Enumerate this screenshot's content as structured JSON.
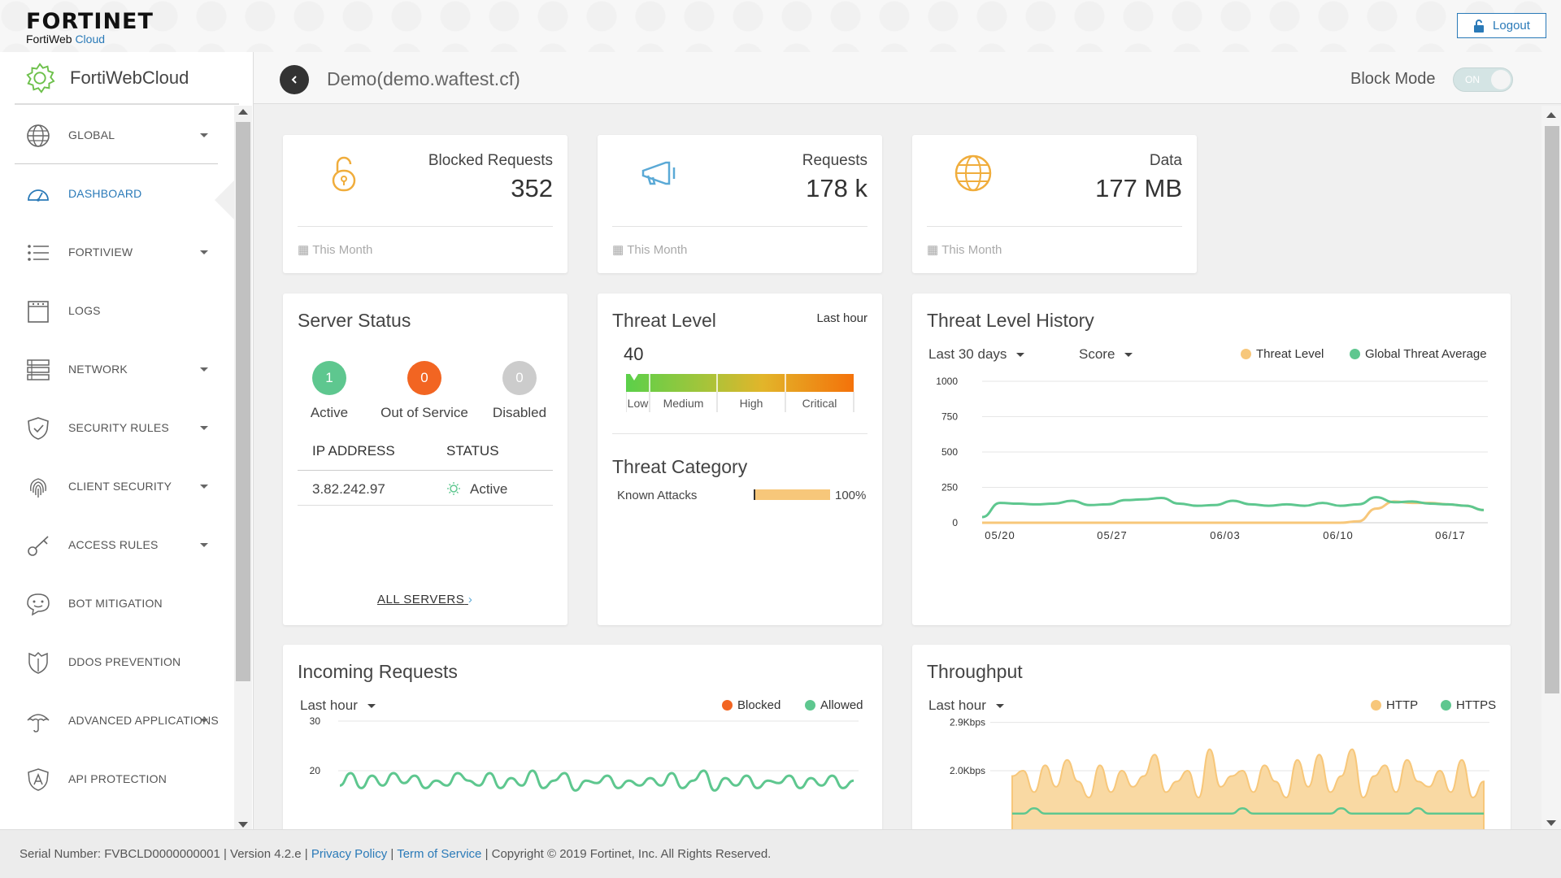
{
  "header": {
    "brand": "FORTINET",
    "product": "FortiWeb",
    "product_suffix": "Cloud",
    "logout_label": "Logout"
  },
  "sidebar": {
    "title": "FortiWebCloud",
    "items": [
      {
        "label": "GLOBAL",
        "icon": "globe-icon",
        "has_caret": true
      },
      {
        "label": "DASHBOARD",
        "icon": "dashboard-icon",
        "has_caret": false,
        "active": true
      },
      {
        "label": "FORTIVIEW",
        "icon": "list-icon",
        "has_caret": true
      },
      {
        "label": "LOGS",
        "icon": "logs-icon",
        "has_caret": false
      },
      {
        "label": "NETWORK",
        "icon": "network-icon",
        "has_caret": true
      },
      {
        "label": "SECURITY RULES",
        "icon": "shield-icon",
        "has_caret": true
      },
      {
        "label": "CLIENT SECURITY",
        "icon": "fingerprint-icon",
        "has_caret": true
      },
      {
        "label": "ACCESS RULES",
        "icon": "key-icon",
        "has_caret": true
      },
      {
        "label": "BOT MITIGATION",
        "icon": "bot-icon",
        "has_caret": false
      },
      {
        "label": "DDOS PREVENTION",
        "icon": "ddos-shield-icon",
        "has_caret": false
      },
      {
        "label": "ADVANCED APPLICATIONS",
        "icon": "umbrella-icon",
        "has_caret": true
      },
      {
        "label": "API PROTECTION",
        "icon": "api-icon",
        "has_caret": false
      }
    ]
  },
  "titlebar": {
    "site": "Demo(demo.waftest.cf)",
    "block_mode_label": "Block Mode",
    "toggle_label": "ON"
  },
  "stats": [
    {
      "label": "Blocked Requests",
      "value": "352",
      "period": "This Month",
      "icon": "unlock-icon",
      "color": "#f0ad3c"
    },
    {
      "label": "Requests",
      "value": "178 k",
      "period": "This Month",
      "icon": "megaphone-icon",
      "color": "#5aa9d6"
    },
    {
      "label": "Data",
      "value": "177 MB",
      "period": "This Month",
      "icon": "globe-icon",
      "color": "#f0ad3c"
    }
  ],
  "server_status": {
    "title": "Server Status",
    "counts": [
      {
        "value": "1",
        "label": "Active",
        "color": "#5ec78f"
      },
      {
        "value": "0",
        "label": "Out of Service",
        "color": "#f26522"
      },
      {
        "value": "0",
        "label": "Disabled",
        "color": "#cccccc"
      }
    ],
    "columns": [
      "IP ADDRESS",
      "STATUS"
    ],
    "rows": [
      {
        "ip": "3.82.242.97",
        "status": "Active"
      }
    ],
    "all_link": "ALL SERVERS"
  },
  "threat_level": {
    "title": "Threat Level",
    "period": "Last hour",
    "value": 40,
    "levels": [
      "Low",
      "Medium",
      "High",
      "Critical"
    ],
    "category_title": "Threat Category",
    "category": {
      "name": "Known Attacks",
      "percent": "100%",
      "fraction": 1.0
    }
  },
  "threat_history": {
    "title": "Threat Level History",
    "range": "Last 30 days",
    "metric": "Score",
    "legend": [
      {
        "name": "Threat Level",
        "color": "#f7c77a"
      },
      {
        "name": "Global Threat Average",
        "color": "#5ec78f"
      }
    ]
  },
  "incoming": {
    "title": "Incoming Requests",
    "range": "Last hour",
    "legend": [
      {
        "name": "Blocked",
        "color": "#f26522"
      },
      {
        "name": "Allowed",
        "color": "#5ec78f"
      }
    ]
  },
  "throughput": {
    "title": "Throughput",
    "range": "Last hour",
    "legend": [
      {
        "name": "HTTP",
        "color": "#f7c77a"
      },
      {
        "name": "HTTPS",
        "color": "#5ec78f"
      }
    ]
  },
  "chart_data": [
    {
      "type": "line",
      "title": "Threat Level History",
      "x_ticks": [
        "05/20",
        "05/27",
        "06/03",
        "06/10",
        "06/17"
      ],
      "y_ticks": [
        "0",
        "250",
        "500",
        "750",
        "1000"
      ],
      "ylim": [
        0,
        1000
      ],
      "series": [
        {
          "name": "Global Threat Average",
          "color": "#5ec78f",
          "values": [
            40,
            140,
            135,
            130,
            135,
            155,
            125,
            130,
            160,
            165,
            175,
            135,
            120,
            125,
            155,
            130,
            120,
            130,
            120,
            140,
            120,
            130,
            180,
            145,
            150,
            135,
            130,
            120,
            90
          ]
        },
        {
          "name": "Threat Level",
          "color": "#f7c77a",
          "values": [
            0,
            0,
            0,
            0,
            0,
            0,
            0,
            0,
            0,
            0,
            0,
            0,
            0,
            0,
            0,
            0,
            0,
            0,
            0,
            0,
            0,
            10,
            100,
            150,
            140,
            140,
            130,
            120,
            90
          ]
        }
      ]
    },
    {
      "type": "line",
      "title": "Incoming Requests",
      "y_ticks": [
        "20",
        "30"
      ],
      "series": [
        {
          "name": "Allowed",
          "color": "#5ec78f",
          "values": [
            17,
            19.5,
            16.5,
            19,
            17,
            19.5,
            17.5,
            19,
            16.5,
            18,
            17,
            19.5,
            18,
            17,
            19.5,
            16.5,
            18.5,
            17,
            20,
            16.5,
            18,
            19.5,
            16,
            18,
            17.5,
            19,
            16.5,
            18,
            17,
            18.5,
            17,
            19.5,
            16.5,
            18,
            20,
            16,
            18.5,
            17,
            19,
            16.5,
            18,
            17.5,
            19,
            16.5,
            18.5,
            17,
            19,
            16.5,
            18
          ]
        }
      ]
    },
    {
      "type": "area",
      "title": "Throughput",
      "y_ticks": [
        "2.0Kbps",
        "2.9Kbps"
      ],
      "series": [
        {
          "name": "HTTP",
          "color": "#f7c77a",
          "values": [
            1.9,
            2.0,
            1.6,
            2.1,
            1.7,
            2.2,
            1.8,
            1.5,
            2.1,
            1.6,
            2.0,
            1.7,
            1.9,
            2.3,
            1.6,
            1.8,
            2.0,
            1.5,
            2.4,
            1.7,
            1.9,
            2.0,
            1.6,
            2.1,
            1.8,
            1.5,
            2.2,
            1.7,
            2.3,
            1.6,
            1.9,
            2.4,
            1.5,
            1.9,
            2.1,
            1.6,
            2.2,
            1.8,
            1.7,
            2.0,
            1.6,
            2.2,
            1.5,
            1.8
          ]
        },
        {
          "name": "HTTPS",
          "color": "#5ec78f",
          "values": [
            1.2,
            1.2,
            1.3,
            1.2,
            1.2,
            1.2,
            1.2,
            1.2,
            1.2,
            1.2,
            1.2,
            1.2,
            1.2,
            1.2,
            1.2,
            1.2,
            1.2,
            1.2,
            1.2,
            1.2,
            1.2,
            1.3,
            1.2,
            1.2,
            1.2,
            1.2,
            1.2,
            1.2,
            1.2,
            1.2,
            1.3,
            1.2,
            1.2,
            1.2,
            1.2,
            1.2,
            1.2,
            1.3,
            1.2,
            1.2,
            1.2,
            1.2,
            1.2,
            1.2
          ]
        }
      ]
    }
  ],
  "footer": {
    "serial": "Serial Number: FVBCLD0000000001 | Version 4.2.e |",
    "privacy": "Privacy Policy",
    "sep": "|",
    "terms": "Term of Service",
    "copyright": "| Copyright © 2019 Fortinet, Inc. All Rights Reserved."
  }
}
